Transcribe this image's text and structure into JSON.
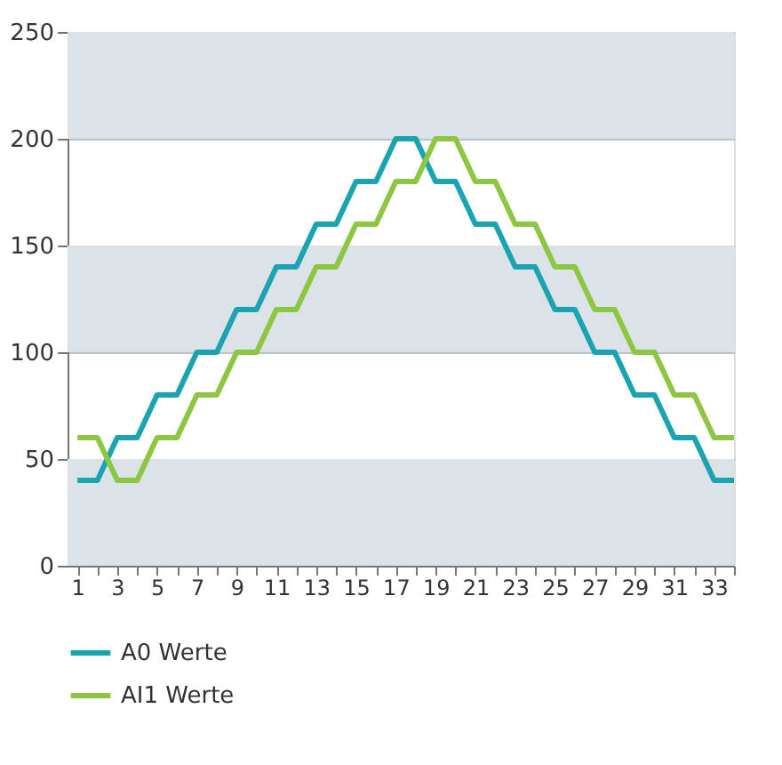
{
  "chart_data": {
    "type": "line",
    "x": [
      1,
      2,
      3,
      4,
      5,
      6,
      7,
      8,
      9,
      10,
      11,
      12,
      13,
      14,
      15,
      16,
      17,
      18,
      19,
      20,
      21,
      22,
      23,
      24,
      25,
      26,
      27,
      28,
      29,
      30,
      31,
      32,
      33,
      34
    ],
    "series": [
      {
        "name": "A0 Werte",
        "color": "#1aa3b0",
        "values": [
          40,
          40,
          60,
          60,
          80,
          80,
          100,
          100,
          120,
          120,
          140,
          140,
          160,
          160,
          180,
          180,
          200,
          200,
          180,
          180,
          160,
          160,
          140,
          140,
          120,
          120,
          100,
          100,
          80,
          80,
          60,
          60,
          40,
          40
        ]
      },
      {
        "name": "AI1 Werte",
        "color": "#8dc641",
        "values": [
          60,
          60,
          40,
          40,
          60,
          60,
          80,
          80,
          100,
          100,
          120,
          120,
          140,
          140,
          160,
          160,
          180,
          180,
          200,
          200,
          180,
          180,
          160,
          160,
          140,
          140,
          120,
          120,
          100,
          100,
          80,
          80,
          60,
          60
        ]
      }
    ],
    "xlim": [
      0.5,
      34
    ],
    "xticks": [
      1,
      {
        "value": 2,
        "label": null
      },
      3,
      {
        "value": 4,
        "label": null
      },
      5,
      {
        "value": 6,
        "label": null
      },
      7,
      {
        "value": 8,
        "label": null
      },
      9,
      {
        "value": 10,
        "label": null
      },
      11,
      {
        "value": 12,
        "label": null
      },
      13,
      {
        "value": 14,
        "label": null
      },
      15,
      {
        "value": 16,
        "label": null
      },
      17,
      {
        "value": 18,
        "label": null
      },
      19,
      {
        "value": 20,
        "label": null
      },
      21,
      {
        "value": 22,
        "label": null
      },
      23,
      {
        "value": 24,
        "label": null
      },
      25,
      {
        "value": 26,
        "label": null
      },
      27,
      {
        "value": 28,
        "label": null
      },
      29,
      {
        "value": 30,
        "label": null
      },
      31,
      {
        "value": 32,
        "label": null
      },
      33,
      {
        "value": 34,
        "label": null
      }
    ],
    "ylim": [
      0,
      250
    ],
    "yticks": [
      0,
      50,
      100,
      150,
      200,
      250
    ],
    "bands": [
      {
        "axis": "y",
        "from": 0,
        "to": 50,
        "color": "#dce3e8"
      },
      {
        "axis": "y",
        "from": 100,
        "to": 150,
        "color": "#dce3e8"
      },
      {
        "axis": "y",
        "from": 200,
        "to": 250,
        "color": "#dce3e8"
      }
    ],
    "grid": "y",
    "legend": "bottom",
    "line_style": "solid"
  }
}
